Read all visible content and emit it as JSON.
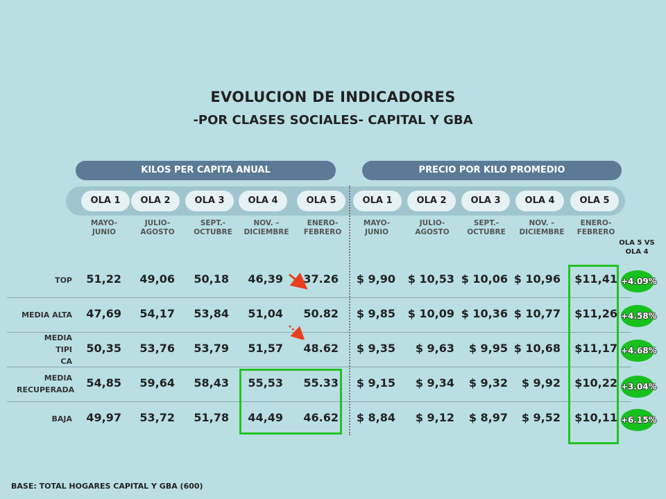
{
  "title": "EVOLUCION DE INDICADORES",
  "subtitle": "-POR CLASES SOCIALES- CAPITAL Y GBA",
  "sections": {
    "kilos": "KILOS PER CAPITA ANUAL",
    "precio": "PRECIO POR KILO PROMEDIO"
  },
  "olas": [
    "OLA 1",
    "OLA 2",
    "OLA 3",
    "OLA 4",
    "OLA 5"
  ],
  "periods": [
    [
      "MAYO-",
      "JUNIO"
    ],
    [
      "JULIO-",
      "AGOSTO"
    ],
    [
      "SEPT.-",
      "OCTUBRE"
    ],
    [
      "NOV. –",
      "DICIEMBRE"
    ],
    [
      "ENERO-",
      "FEBRERO"
    ]
  ],
  "comparison_header": [
    "OLA 5 VS",
    "OLA 4"
  ],
  "rows": [
    {
      "label": [
        "TOP"
      ],
      "kilos": [
        "51,22",
        "49,06",
        "50,18",
        "46,39",
        "37.26"
      ],
      "precio": [
        "$ 9,90",
        "$ 10,53",
        "$ 10,06",
        "$ 10,96",
        "$11,41"
      ],
      "change": "+4.09%"
    },
    {
      "label": [
        "MEDIA ALTA"
      ],
      "kilos": [
        "47,69",
        "54,17",
        "53,84",
        "51,04",
        "50.82"
      ],
      "precio": [
        "$ 9,85",
        "$ 10,09",
        "$ 10,36",
        "$ 10,77",
        "$11,26"
      ],
      "change": "+4.58%"
    },
    {
      "label": [
        "MEDIA",
        "TIPI",
        "CA"
      ],
      "kilos": [
        "50,35",
        "53,76",
        "53,79",
        "51,57",
        "48.62"
      ],
      "precio": [
        "$ 9,35",
        "$ 9,63",
        "$ 9,95",
        "$ 10,68",
        "$11,17"
      ],
      "change": "+4.68%"
    },
    {
      "label": [
        "MEDIA",
        "RECUPERADA"
      ],
      "kilos": [
        "54,85",
        "59,64",
        "58,43",
        "55,53",
        "55.33"
      ],
      "precio": [
        "$ 9,15",
        "$ 9,34",
        "$ 9,32",
        "$ 9,92",
        "$10,22"
      ],
      "change": "+3.04%"
    },
    {
      "label": [
        "BAJA"
      ],
      "kilos": [
        "49,97",
        "53,72",
        "51,78",
        "44,49",
        "46.62"
      ],
      "precio": [
        "$ 8,84",
        "$ 9,12",
        "$ 8,97",
        "$ 9,52",
        "$10,11"
      ],
      "change": "+6.15%"
    }
  ],
  "footer": "BASE: TOTAL HOGARES CAPITAL Y GBA (600)",
  "colors": {
    "background": "#b9dfe3",
    "section_bar": "#5a7a96",
    "highlight_box": "#22c322",
    "badge": "#18c01e",
    "arrow": "#e8401c"
  }
}
